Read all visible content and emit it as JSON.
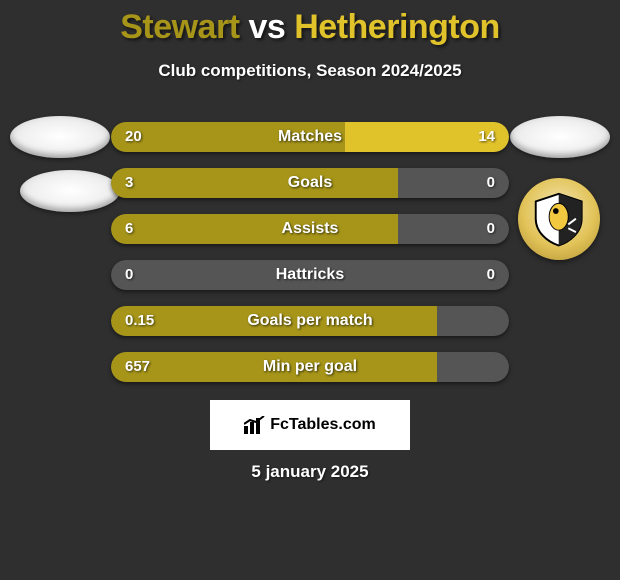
{
  "colors": {
    "background": "#2f2f2f",
    "primary": "#a69519",
    "secondary": "#e0c22a",
    "track": "#555555",
    "text": "#ffffff"
  },
  "title": {
    "left_name": "Stewart",
    "vs": " vs ",
    "right_name": "Hetherington",
    "left_color": "#a69519",
    "right_color": "#e0c22a",
    "fontsize": 34
  },
  "subtitle": "Club competitions, Season 2024/2025",
  "bar_style": {
    "height": 30,
    "radius": 15,
    "gap": 16,
    "label_fontsize": 16,
    "value_fontsize": 15
  },
  "bars": [
    {
      "label": "Matches",
      "left": "20",
      "right": "14",
      "left_pct": 58.8,
      "right_pct": 41.2
    },
    {
      "label": "Goals",
      "left": "3",
      "right": "0",
      "left_pct": 72.0,
      "right_pct": 0
    },
    {
      "label": "Assists",
      "left": "6",
      "right": "0",
      "left_pct": 72.0,
      "right_pct": 0
    },
    {
      "label": "Hattricks",
      "left": "0",
      "right": "0",
      "left_pct": 0,
      "right_pct": 0
    },
    {
      "label": "Goals per match",
      "left": "0.15",
      "right": "",
      "left_pct": 82.0,
      "right_pct": 0
    },
    {
      "label": "Min per goal",
      "left": "657",
      "right": "",
      "left_pct": 82.0,
      "right_pct": 0
    }
  ],
  "attribution": "FcTables.com",
  "date": "5 january 2025"
}
